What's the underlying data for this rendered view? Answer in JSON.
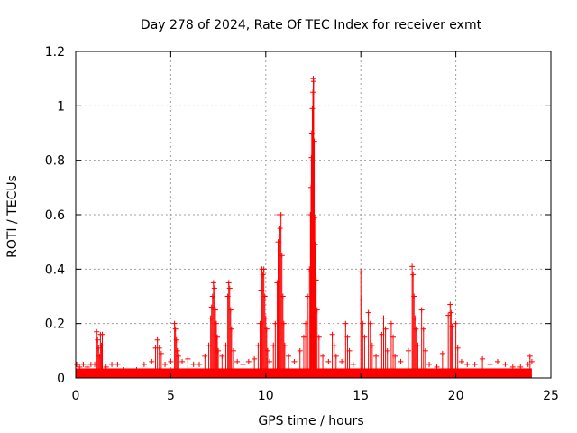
{
  "chart_data": {
    "type": "scatter",
    "title": "Day 278 of 2024, Rate Of TEC Index for receiver exmt",
    "xlabel": "GPS time / hours",
    "ylabel": "ROTI / TECUs",
    "xlim": [
      0,
      25
    ],
    "ylim": [
      0,
      1.2
    ],
    "xticks": [
      0,
      5,
      10,
      15,
      20,
      25
    ],
    "xtick_labels": [
      "0",
      "5",
      "10",
      "15",
      "20",
      "25"
    ],
    "yticks": [
      0,
      0.2,
      0.4,
      0.6,
      0.8,
      1.0,
      1.2
    ],
    "ytick_labels": [
      "0",
      "0.2",
      "0.4",
      "0.6",
      "0.8",
      "1",
      "1.2"
    ],
    "grid": true,
    "marker": "plus",
    "color": "#ff0000",
    "series": [
      {
        "name": "ROTI",
        "points": [
          [
            0.05,
            0.05
          ],
          [
            0.2,
            0.04
          ],
          [
            0.4,
            0.05
          ],
          [
            0.6,
            0.04
          ],
          [
            0.8,
            0.05
          ],
          [
            1.0,
            0.05
          ],
          [
            1.1,
            0.17
          ],
          [
            1.15,
            0.14
          ],
          [
            1.2,
            0.11
          ],
          [
            1.25,
            0.08
          ],
          [
            1.3,
            0.16
          ],
          [
            1.35,
            0.12
          ],
          [
            1.4,
            0.16
          ],
          [
            1.6,
            0.04
          ],
          [
            1.9,
            0.05
          ],
          [
            2.2,
            0.05
          ],
          [
            2.5,
            0.03
          ],
          [
            2.8,
            0.02
          ],
          [
            3.2,
            0.03
          ],
          [
            3.6,
            0.05
          ],
          [
            4.0,
            0.06
          ],
          [
            4.2,
            0.11
          ],
          [
            4.3,
            0.14
          ],
          [
            4.4,
            0.11
          ],
          [
            4.5,
            0.09
          ],
          [
            4.7,
            0.05
          ],
          [
            5.0,
            0.06
          ],
          [
            5.2,
            0.2
          ],
          [
            5.25,
            0.18
          ],
          [
            5.3,
            0.14
          ],
          [
            5.35,
            0.1
          ],
          [
            5.4,
            0.08
          ],
          [
            5.6,
            0.06
          ],
          [
            5.9,
            0.07
          ],
          [
            6.2,
            0.05
          ],
          [
            6.5,
            0.05
          ],
          [
            6.8,
            0.08
          ],
          [
            7.0,
            0.12
          ],
          [
            7.1,
            0.22
          ],
          [
            7.15,
            0.26
          ],
          [
            7.2,
            0.3
          ],
          [
            7.25,
            0.35
          ],
          [
            7.3,
            0.33
          ],
          [
            7.35,
            0.25
          ],
          [
            7.4,
            0.2
          ],
          [
            7.45,
            0.15
          ],
          [
            7.5,
            0.1
          ],
          [
            7.7,
            0.08
          ],
          [
            7.9,
            0.12
          ],
          [
            8.0,
            0.3
          ],
          [
            8.05,
            0.35
          ],
          [
            8.1,
            0.33
          ],
          [
            8.15,
            0.25
          ],
          [
            8.2,
            0.18
          ],
          [
            8.3,
            0.1
          ],
          [
            8.5,
            0.06
          ],
          [
            8.8,
            0.05
          ],
          [
            9.1,
            0.06
          ],
          [
            9.4,
            0.07
          ],
          [
            9.6,
            0.12
          ],
          [
            9.7,
            0.2
          ],
          [
            9.75,
            0.32
          ],
          [
            9.8,
            0.4
          ],
          [
            9.85,
            0.38
          ],
          [
            9.9,
            0.4
          ],
          [
            9.95,
            0.3
          ],
          [
            10.0,
            0.22
          ],
          [
            10.05,
            0.18
          ],
          [
            10.1,
            0.1
          ],
          [
            10.2,
            0.06
          ],
          [
            10.4,
            0.12
          ],
          [
            10.5,
            0.2
          ],
          [
            10.6,
            0.35
          ],
          [
            10.65,
            0.5
          ],
          [
            10.7,
            0.6
          ],
          [
            10.75,
            0.55
          ],
          [
            10.8,
            0.6
          ],
          [
            10.85,
            0.45
          ],
          [
            10.9,
            0.3
          ],
          [
            10.95,
            0.2
          ],
          [
            11.0,
            0.12
          ],
          [
            11.2,
            0.08
          ],
          [
            11.5,
            0.06
          ],
          [
            11.8,
            0.1
          ],
          [
            12.0,
            0.15
          ],
          [
            12.1,
            0.2
          ],
          [
            12.2,
            0.3
          ],
          [
            12.3,
            0.4
          ],
          [
            12.35,
            0.6
          ],
          [
            12.38,
            0.7
          ],
          [
            12.4,
            0.81
          ],
          [
            12.42,
            0.9
          ],
          [
            12.45,
            0.99
          ],
          [
            12.48,
            1.05
          ],
          [
            12.5,
            1.1
          ],
          [
            12.52,
            1.09
          ],
          [
            12.55,
            0.87
          ],
          [
            12.58,
            0.59
          ],
          [
            12.6,
            0.49
          ],
          [
            12.65,
            0.36
          ],
          [
            12.7,
            0.25
          ],
          [
            12.8,
            0.15
          ],
          [
            13.0,
            0.08
          ],
          [
            13.3,
            0.06
          ],
          [
            13.5,
            0.16
          ],
          [
            13.6,
            0.12
          ],
          [
            13.7,
            0.08
          ],
          [
            14.0,
            0.06
          ],
          [
            14.2,
            0.2
          ],
          [
            14.3,
            0.15
          ],
          [
            14.4,
            0.1
          ],
          [
            14.6,
            0.05
          ],
          [
            15.0,
            0.39
          ],
          [
            15.05,
            0.29
          ],
          [
            15.1,
            0.2
          ],
          [
            15.2,
            0.15
          ],
          [
            15.4,
            0.24
          ],
          [
            15.5,
            0.2
          ],
          [
            15.6,
            0.12
          ],
          [
            15.8,
            0.08
          ],
          [
            16.1,
            0.16
          ],
          [
            16.2,
            0.22
          ],
          [
            16.3,
            0.18
          ],
          [
            16.4,
            0.1
          ],
          [
            16.6,
            0.2
          ],
          [
            16.7,
            0.15
          ],
          [
            16.8,
            0.08
          ],
          [
            17.1,
            0.06
          ],
          [
            17.5,
            0.1
          ],
          [
            17.7,
            0.41
          ],
          [
            17.75,
            0.38
          ],
          [
            17.8,
            0.3
          ],
          [
            17.85,
            0.22
          ],
          [
            17.9,
            0.18
          ],
          [
            18.0,
            0.12
          ],
          [
            18.2,
            0.25
          ],
          [
            18.3,
            0.18
          ],
          [
            18.4,
            0.1
          ],
          [
            18.6,
            0.05
          ],
          [
            19.0,
            0.04
          ],
          [
            19.3,
            0.09
          ],
          [
            19.6,
            0.23
          ],
          [
            19.7,
            0.27
          ],
          [
            19.75,
            0.24
          ],
          [
            19.8,
            0.19
          ],
          [
            20.0,
            0.2
          ],
          [
            20.1,
            0.11
          ],
          [
            20.3,
            0.06
          ],
          [
            20.6,
            0.05
          ],
          [
            21.0,
            0.05
          ],
          [
            21.4,
            0.07
          ],
          [
            21.8,
            0.05
          ],
          [
            22.2,
            0.06
          ],
          [
            22.6,
            0.05
          ],
          [
            23.0,
            0.04
          ],
          [
            23.4,
            0.04
          ],
          [
            23.8,
            0.05
          ],
          [
            23.9,
            0.08
          ],
          [
            24.0,
            0.06
          ]
        ]
      }
    ]
  }
}
